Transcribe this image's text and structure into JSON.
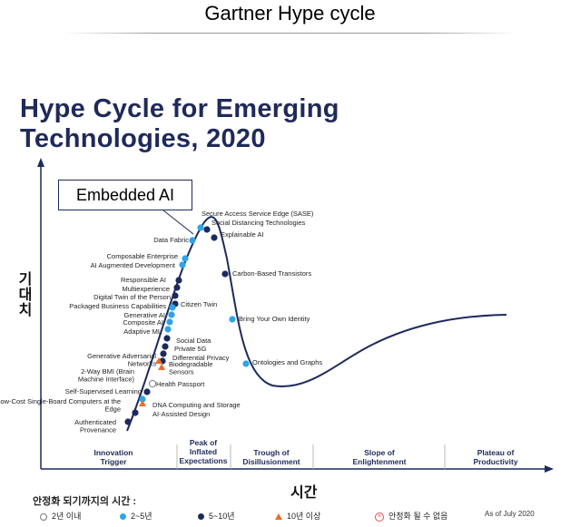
{
  "header": {
    "title": "Gartner Hype cycle"
  },
  "chart_title": {
    "line1": "Hype Cycle for Emerging",
    "line2": "Technologies, 2020"
  },
  "callout": {
    "label": "Embedded AI"
  },
  "axes": {
    "y_label": "기대치",
    "x_label": "시간"
  },
  "phases": [
    {
      "line1": "Innovation",
      "line2": "Trigger",
      "line3": ""
    },
    {
      "line1": "Peak of",
      "line2": "Inflated",
      "line3": "Expectations"
    },
    {
      "line1": "Trough of",
      "line2": "Disillusionment",
      "line3": ""
    },
    {
      "line1": "Slope of",
      "line2": "Enlightenment",
      "line3": ""
    },
    {
      "line1": "Plateau of",
      "line2": "Productivity",
      "line3": ""
    }
  ],
  "legend": {
    "title": "안정화 되기까지의 시간 :",
    "items": [
      {
        "marker": "open-circle",
        "color": "#ffffff",
        "label": "2년 이내"
      },
      {
        "marker": "circle",
        "color": "#2fa4e7",
        "label": "2~5년"
      },
      {
        "marker": "circle",
        "color": "#1c2a5e",
        "label": "5~10년"
      },
      {
        "marker": "triangle",
        "color": "#ee6a2c",
        "label": "10년 이상"
      },
      {
        "marker": "x-circle",
        "color": "#e05050",
        "label": "안정화 될 수 없음"
      }
    ],
    "as_of": "As of July 2020"
  },
  "technologies": [
    {
      "name": "Secure Access Service Edge (SASE)",
      "marker": "light"
    },
    {
      "name": "Social Distancing Technologies",
      "marker": "dark"
    },
    {
      "name": "Explainable AI",
      "marker": "dark"
    },
    {
      "name": "Data Fabric",
      "marker": "light"
    },
    {
      "name": "Composable Enterprise",
      "marker": "light"
    },
    {
      "name": "AI Augmented Development",
      "marker": "light"
    },
    {
      "name": "Carbon-Based Transistors",
      "marker": "dark"
    },
    {
      "name": "Responsible AI",
      "marker": "dark"
    },
    {
      "name": "Multiexperience",
      "marker": "dark"
    },
    {
      "name": "Digital Twin of the Person",
      "marker": "dark"
    },
    {
      "name": "Citizen Twin",
      "marker": "dark"
    },
    {
      "name": "Packaged Business Capabilities",
      "marker": "light"
    },
    {
      "name": "Generative AI",
      "marker": "light"
    },
    {
      "name": "Composite AI",
      "marker": "light"
    },
    {
      "name": "Adaptive ML",
      "marker": "light"
    },
    {
      "name": "Bring Your Own Identity",
      "marker": "light"
    },
    {
      "name": "Social Data",
      "marker": "dark"
    },
    {
      "name": "Private 5G",
      "marker": "dark"
    },
    {
      "name": "Differential Privacy",
      "marker": "dark"
    },
    {
      "name": "Generative Adversarial Networks",
      "marker": "dark"
    },
    {
      "name": "Biodegradable Sensors",
      "marker": "triangle"
    },
    {
      "name": "2-Way BMI (Brain Machine Interface)",
      "marker": "triangle"
    },
    {
      "name": "Health Passport",
      "marker": "open"
    },
    {
      "name": "Ontologies and Graphs",
      "marker": "light"
    },
    {
      "name": "Self-Supervised Learning",
      "marker": "dark"
    },
    {
      "name": "Low-Cost Single-Board Computers at the Edge",
      "marker": "light"
    },
    {
      "name": "DNA Computing and Storage",
      "marker": "triangle"
    },
    {
      "name": "AI-Assisted Design",
      "marker": "dark"
    },
    {
      "name": "Authenticated Provenance",
      "marker": "dark"
    }
  ]
}
